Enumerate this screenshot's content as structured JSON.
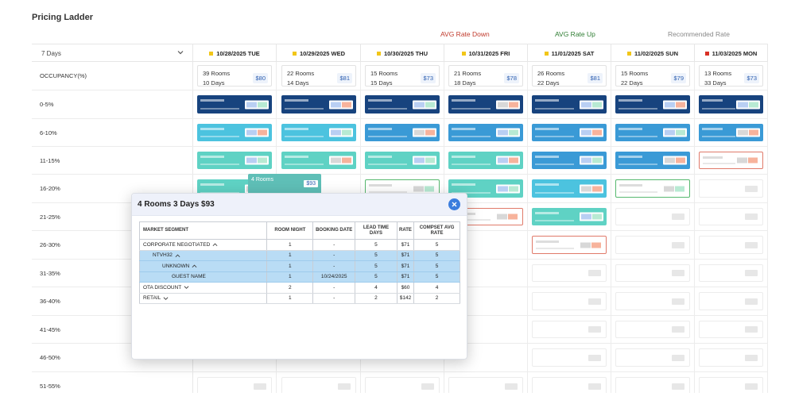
{
  "page": {
    "title": "Pricing Ladder"
  },
  "legend": {
    "avg_down": "AVG Rate Down",
    "avg_up": "AVG Rate Up",
    "recommended": "Recommended Rate"
  },
  "selector": {
    "value": "7 Days",
    "icon": "chevron-down-icon"
  },
  "dates": [
    {
      "label": "10/28/2025 TUE",
      "flag": "#f2c618"
    },
    {
      "label": "10/29/2025 WED",
      "flag": "#f2c618"
    },
    {
      "label": "10/30/2025 THU",
      "flag": "#f2c618"
    },
    {
      "label": "10/31/2025 FRI",
      "flag": "#f2c618"
    },
    {
      "label": "11/01/2025 SAT",
      "flag": "#f2c618"
    },
    {
      "label": "11/02/2025 SUN",
      "flag": "#f2c618"
    },
    {
      "label": "11/03/2025 MON",
      "flag": "#d93025"
    }
  ],
  "occupancy": {
    "label": "OCCUPANCY(%)",
    "cells": [
      {
        "rooms": "39 Rooms",
        "days": "10 Days",
        "rate": "$80"
      },
      {
        "rooms": "22 Rooms",
        "days": "14 Days",
        "rate": "$81"
      },
      {
        "rooms": "15 Rooms",
        "days": "15 Days",
        "rate": "$73"
      },
      {
        "rooms": "21 Rooms",
        "days": "18 Days",
        "rate": "$78"
      },
      {
        "rooms": "26 Rooms",
        "days": "22 Days",
        "rate": "$81"
      },
      {
        "rooms": "15 Rooms",
        "days": "22 Days",
        "rate": "$79"
      },
      {
        "rooms": "13 Rooms",
        "days": "33 Days",
        "rate": "$73"
      }
    ]
  },
  "rows": [
    {
      "label": "0-5%",
      "tiles": [
        "dark",
        "dark",
        "dark",
        "dark",
        "dark",
        "dark",
        "dark"
      ]
    },
    {
      "label": "6-10%",
      "tiles": [
        "cyan",
        "cyan",
        "med",
        "med",
        "med",
        "med",
        "med"
      ]
    },
    {
      "label": "11-15%",
      "tiles": [
        "teal",
        "teal",
        "teal",
        "teal",
        "med",
        "med",
        "red"
      ]
    },
    {
      "label": "16-20%",
      "tiles": [
        "teal",
        "popup",
        "green",
        "teal",
        "cyan",
        "green",
        "empty"
      ]
    },
    {
      "label": "21-25%",
      "tiles": [
        "",
        "",
        "",
        "red",
        "teal",
        "empty",
        "empty"
      ]
    },
    {
      "label": "26-30%",
      "tiles": [
        "",
        "",
        "",
        "",
        "red",
        "empty",
        "empty"
      ]
    },
    {
      "label": "31-35%",
      "tiles": [
        "",
        "",
        "",
        "",
        "empty",
        "empty",
        "empty"
      ]
    },
    {
      "label": "36-40%",
      "tiles": [
        "",
        "",
        "",
        "",
        "empty",
        "empty",
        "empty"
      ]
    },
    {
      "label": "41-45%",
      "tiles": [
        "",
        "",
        "",
        "",
        "empty",
        "empty",
        "empty"
      ]
    },
    {
      "label": "46-50%",
      "tiles": [
        "",
        "",
        "",
        "",
        "empty",
        "empty",
        "empty"
      ]
    },
    {
      "label": "51-55%",
      "tiles": [
        "empty",
        "empty",
        "empty",
        "empty",
        "empty",
        "empty",
        "empty"
      ]
    }
  ],
  "popup_tile": {
    "rooms": "4 Rooms",
    "price": "$93"
  },
  "modal": {
    "title": "4 Rooms 3 Days $93",
    "close_icon": "close-icon",
    "columns": [
      "MARKET SEGMENT",
      "ROOM NIGHT",
      "BOOKING DATE",
      "LEAD TIME DAYS",
      "RATE",
      "COMPSET AVG RATE"
    ],
    "rows": [
      {
        "segment": "CORPORATE NEGOTIATED",
        "indent": 0,
        "toggle": "up",
        "highlight": false,
        "room_night": "1",
        "booking_date": "-",
        "lead_time": "5",
        "rate": "$71",
        "compset": "5"
      },
      {
        "segment": "NTVH32",
        "indent": 1,
        "toggle": "up",
        "highlight": true,
        "room_night": "1",
        "booking_date": "-",
        "lead_time": "5",
        "rate": "$71",
        "compset": "5"
      },
      {
        "segment": "UNKNOWN",
        "indent": 2,
        "toggle": "up",
        "highlight": true,
        "room_night": "1",
        "booking_date": "-",
        "lead_time": "5",
        "rate": "$71",
        "compset": "5"
      },
      {
        "segment": "GUEST NAME",
        "indent": 3,
        "toggle": "",
        "highlight": true,
        "room_night": "1",
        "booking_date": "10/24/2025",
        "lead_time": "5",
        "rate": "$71",
        "compset": "5"
      },
      {
        "segment": "OTA DISCOUNT",
        "indent": 0,
        "toggle": "down",
        "highlight": false,
        "room_night": "2",
        "booking_date": "-",
        "lead_time": "4",
        "rate": "$60",
        "compset": "4"
      },
      {
        "segment": "RETAIL",
        "indent": 0,
        "toggle": "down",
        "highlight": false,
        "room_night": "1",
        "booking_date": "-",
        "lead_time": "2",
        "rate": "$142",
        "compset": "2"
      }
    ]
  }
}
